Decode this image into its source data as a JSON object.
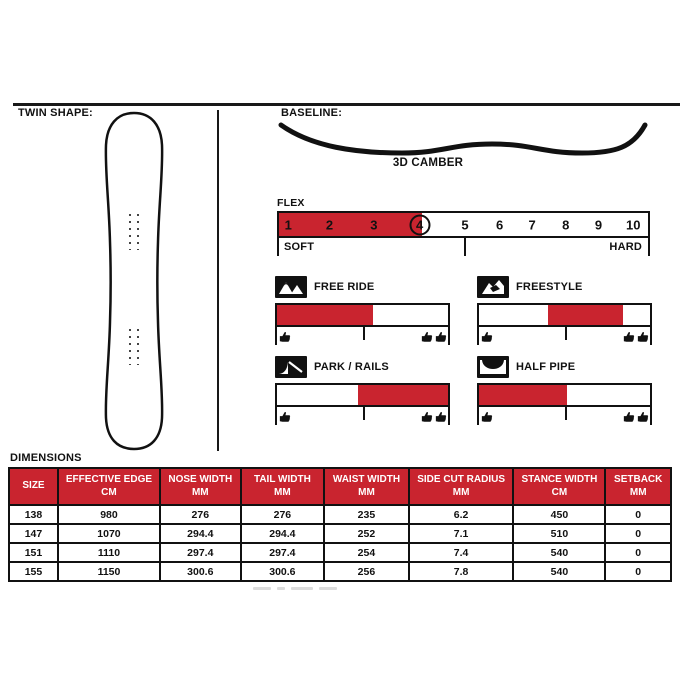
{
  "colors": {
    "accent_red": "#c9242f",
    "line_black": "#181818"
  },
  "left_panel": {
    "title": "TWIN SHAPE:"
  },
  "baseline": {
    "title": "BASELINE:",
    "caption": "3D CAMBER"
  },
  "flex": {
    "label": "FLEX",
    "numbers": [
      "1",
      "2",
      "3",
      "4",
      "5",
      "6",
      "7",
      "8",
      "9",
      "10"
    ],
    "circled_number": "4",
    "fill_start_pct": 0,
    "fill_end_pct": 38.8,
    "left_label": "SOFT",
    "right_label": "HARD"
  },
  "ratings": [
    {
      "name": "FREE RIDE",
      "icon": "mountains-icon",
      "fill_start_pct": 0,
      "fill_end_pct": 56
    },
    {
      "name": "FREESTYLE",
      "icon": "freestyle-jump-icon",
      "fill_start_pct": 40.5,
      "fill_end_pct": 84.5
    },
    {
      "name": "PARK / RAILS",
      "icon": "park-rail-icon",
      "fill_start_pct": 47.5,
      "fill_end_pct": 100
    },
    {
      "name": "HALF PIPE",
      "icon": "halfpipe-icon",
      "fill_start_pct": 0,
      "fill_end_pct": 51.5
    }
  ],
  "dimensions": {
    "title": "DIMENSIONS",
    "columns": [
      {
        "line1": "SIZE",
        "line2": ""
      },
      {
        "line1": "EFFECTIVE EDGE",
        "line2": "CM"
      },
      {
        "line1": "NOSE WIDTH",
        "line2": "MM"
      },
      {
        "line1": "TAIL WIDTH",
        "line2": "MM"
      },
      {
        "line1": "WAIST WIDTH",
        "line2": "MM"
      },
      {
        "line1": "SIDE CUT RADIUS",
        "line2": "MM"
      },
      {
        "line1": "STANCE WIDTH",
        "line2": "CM"
      },
      {
        "line1": "SETBACK",
        "line2": "MM"
      }
    ],
    "rows": [
      [
        "138",
        "980",
        "276",
        "276",
        "235",
        "6.2",
        "450",
        "0"
      ],
      [
        "147",
        "1070",
        "294.4",
        "294.4",
        "252",
        "7.1",
        "510",
        "0"
      ],
      [
        "151",
        "1110",
        "297.4",
        "297.4",
        "254",
        "7.4",
        "540",
        "0"
      ],
      [
        "155",
        "1150",
        "300.6",
        "300.6",
        "256",
        "7.8",
        "540",
        "0"
      ]
    ]
  }
}
